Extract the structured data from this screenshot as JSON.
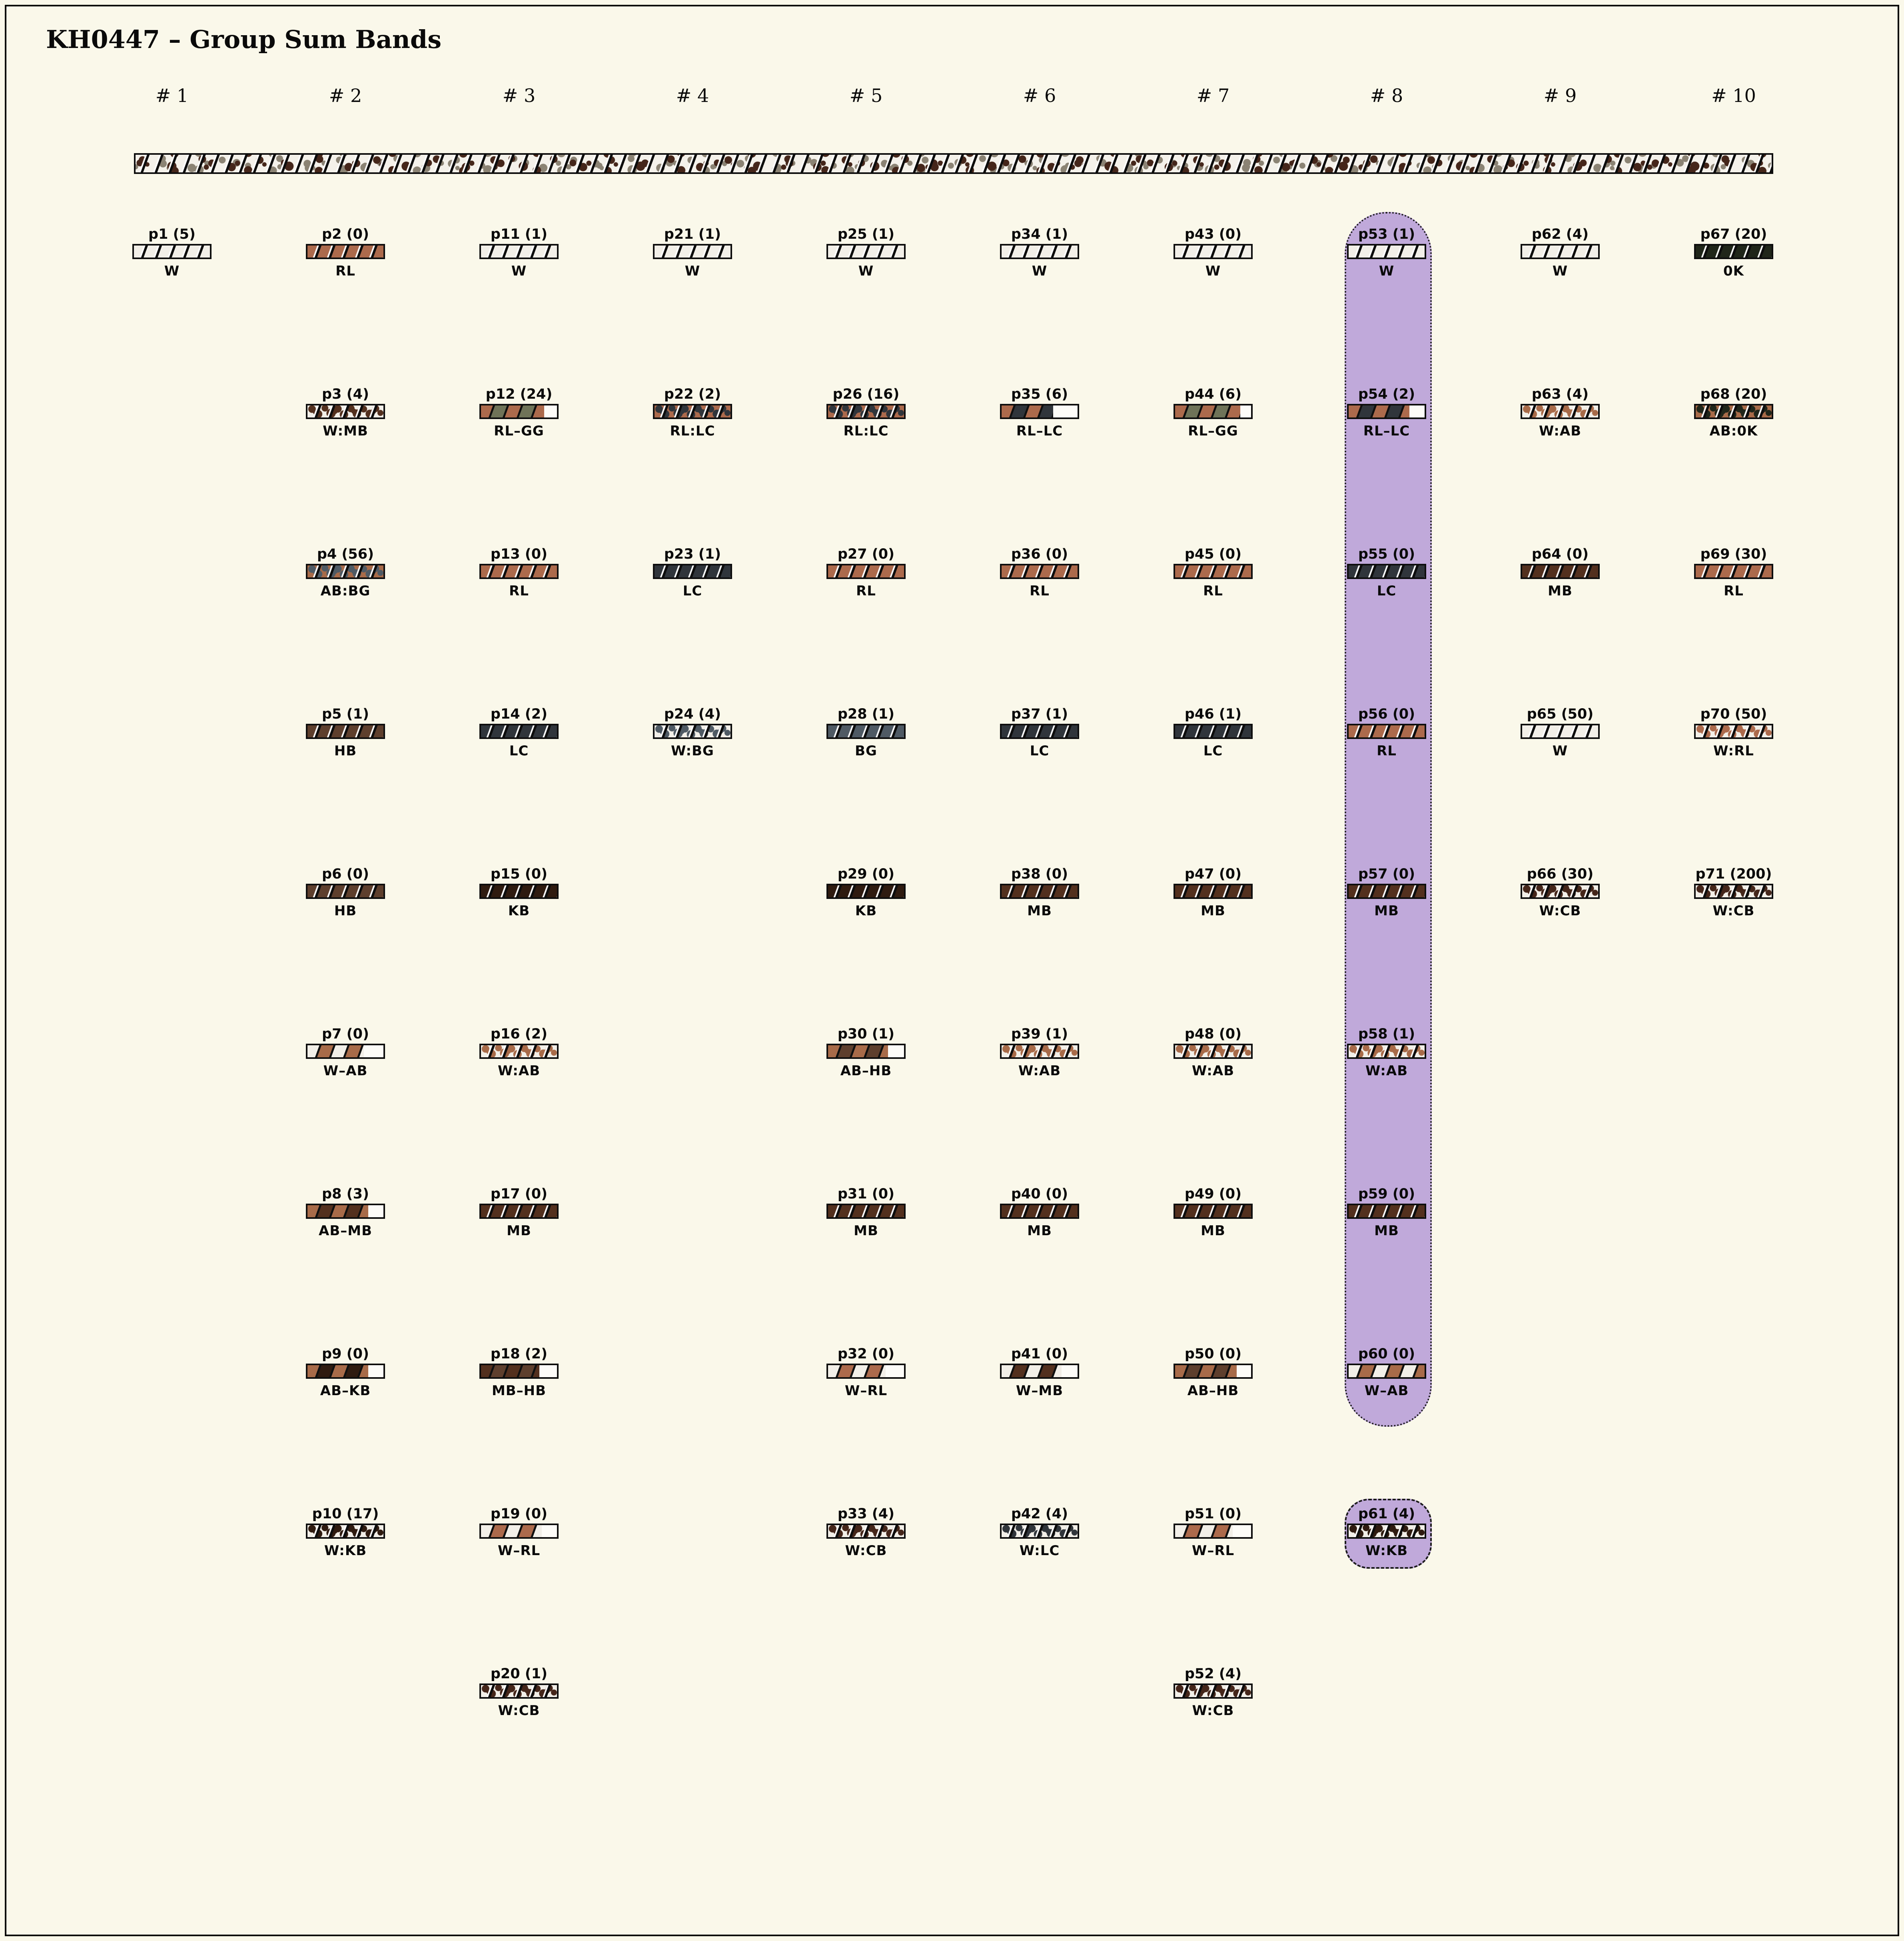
{
  "title": "KH0447 – Group Sum Bands",
  "columns": [
    {
      "label": "# 1"
    },
    {
      "label": "# 2"
    },
    {
      "label": "# 3"
    },
    {
      "label": "# 4"
    },
    {
      "label": "# 5"
    },
    {
      "label": "# 6"
    },
    {
      "label": "# 7"
    },
    {
      "label": "# 8"
    },
    {
      "label": "# 9"
    },
    {
      "label": "# 10"
    }
  ],
  "summary_band": {
    "base": "W",
    "speckle_colors": [
      "CB",
      "BG"
    ],
    "style": "speckled-hatch"
  },
  "highlight": {
    "fill": "#c0a9da",
    "column": 8,
    "from": "p53",
    "to": "p60",
    "separate_item": "p61"
  },
  "palette": {
    "W": "#f2efe8",
    "RL": "#ac6a4c",
    "LC": "#30353b",
    "BG": "#4f5a64",
    "HB": "#5e3f2d",
    "MB": "#53301e",
    "KB": "#2f1b10",
    "0K": "#20261a",
    "AB": "#a86b49",
    "GG": "#6f7358",
    "CB": "#45261a",
    "background": "#faf8ea",
    "band_border": "#0d0d0d",
    "speckle_gray": "#8b8374"
  },
  "items": [
    {
      "id": "p1",
      "label": "p1 (5)",
      "count": 5,
      "code": "W",
      "col": 1,
      "row": 1
    },
    {
      "id": "p2",
      "label": "p2 (0)",
      "count": 0,
      "code": "RL",
      "col": 2,
      "row": 1
    },
    {
      "id": "p3",
      "label": "p3 (4)",
      "count": 4,
      "code": "W:MB",
      "col": 2,
      "row": 2
    },
    {
      "id": "p4",
      "label": "p4 (56)",
      "count": 56,
      "code": "AB:BG",
      "col": 2,
      "row": 3
    },
    {
      "id": "p5",
      "label": "p5 (1)",
      "count": 1,
      "code": "HB",
      "col": 2,
      "row": 4
    },
    {
      "id": "p6",
      "label": "p6 (0)",
      "count": 0,
      "code": "HB",
      "col": 2,
      "row": 5
    },
    {
      "id": "p7",
      "label": "p7 (0)",
      "count": 0,
      "code": "W–AB",
      "col": 2,
      "row": 6,
      "fill": 0.74
    },
    {
      "id": "p8",
      "label": "p8 (3)",
      "count": 3,
      "code": "AB–MB",
      "col": 2,
      "row": 7,
      "fill": 0.8
    },
    {
      "id": "p9",
      "label": "p9 (0)",
      "count": 0,
      "code": "AB–KB",
      "col": 2,
      "row": 8,
      "fill": 0.8
    },
    {
      "id": "p10",
      "label": "p10 (17)",
      "count": 17,
      "code": "W:KB",
      "col": 2,
      "row": 9
    },
    {
      "id": "p11",
      "label": "p11 (1)",
      "count": 1,
      "code": "W",
      "col": 3,
      "row": 1
    },
    {
      "id": "p12",
      "label": "p12 (24)",
      "count": 24,
      "code": "RL–GG",
      "col": 3,
      "row": 2,
      "fill": 0.83
    },
    {
      "id": "p13",
      "label": "p13 (0)",
      "count": 0,
      "code": "RL",
      "col": 3,
      "row": 3
    },
    {
      "id": "p14",
      "label": "p14 (2)",
      "count": 2,
      "code": "LC",
      "col": 3,
      "row": 4
    },
    {
      "id": "p15",
      "label": "p15 (0)",
      "count": 0,
      "code": "KB",
      "col": 3,
      "row": 5
    },
    {
      "id": "p16",
      "label": "p16 (2)",
      "count": 2,
      "code": "W:AB",
      "col": 3,
      "row": 6
    },
    {
      "id": "p17",
      "label": "p17 (0)",
      "count": 0,
      "code": "MB",
      "col": 3,
      "row": 7
    },
    {
      "id": "p18",
      "label": "p18 (2)",
      "count": 2,
      "code": "MB–HB",
      "col": 3,
      "row": 8,
      "fill": 0.77
    },
    {
      "id": "p19",
      "label": "p19 (0)",
      "count": 0,
      "code": "W–RL",
      "col": 3,
      "row": 9,
      "fill": 0.8
    },
    {
      "id": "p20",
      "label": "p20 (1)",
      "count": 1,
      "code": "W:CB",
      "col": 3,
      "row": 10
    },
    {
      "id": "p21",
      "label": "p21 (1)",
      "count": 1,
      "code": "W",
      "col": 4,
      "row": 1
    },
    {
      "id": "p22",
      "label": "p22 (2)",
      "count": 2,
      "code": "RL:LC",
      "col": 4,
      "row": 2
    },
    {
      "id": "p23",
      "label": "p23 (1)",
      "count": 1,
      "code": "LC",
      "col": 4,
      "row": 3
    },
    {
      "id": "p24",
      "label": "p24 (4)",
      "count": 4,
      "code": "W:BG",
      "col": 4,
      "row": 4
    },
    {
      "id": "p25",
      "label": "p25 (1)",
      "count": 1,
      "code": "W",
      "col": 5,
      "row": 1
    },
    {
      "id": "p26",
      "label": "p26 (16)",
      "count": 16,
      "code": "RL:LC",
      "col": 5,
      "row": 2
    },
    {
      "id": "p27",
      "label": "p27 (0)",
      "count": 0,
      "code": "RL",
      "col": 5,
      "row": 3
    },
    {
      "id": "p28",
      "label": "p28 (1)",
      "count": 1,
      "code": "BG",
      "col": 5,
      "row": 4
    },
    {
      "id": "p29",
      "label": "p29 (0)",
      "count": 0,
      "code": "KB",
      "col": 5,
      "row": 5
    },
    {
      "id": "p30",
      "label": "p30 (1)",
      "count": 1,
      "code": "AB–HB",
      "col": 5,
      "row": 6,
      "fill": 0.79
    },
    {
      "id": "p31",
      "label": "p31 (0)",
      "count": 0,
      "code": "MB",
      "col": 5,
      "row": 7
    },
    {
      "id": "p32",
      "label": "p32 (0)",
      "count": 0,
      "code": "W–RL",
      "col": 5,
      "row": 8,
      "fill": 0.76
    },
    {
      "id": "p33",
      "label": "p33 (4)",
      "count": 4,
      "code": "W:CB",
      "col": 5,
      "row": 9
    },
    {
      "id": "p34",
      "label": "p34 (1)",
      "count": 1,
      "code": "W",
      "col": 6,
      "row": 1
    },
    {
      "id": "p35",
      "label": "p35 (6)",
      "count": 6,
      "code": "RL–LC",
      "col": 6,
      "row": 2,
      "fill": 0.68
    },
    {
      "id": "p36",
      "label": "p36 (0)",
      "count": 0,
      "code": "RL",
      "col": 6,
      "row": 3
    },
    {
      "id": "p37",
      "label": "p37 (1)",
      "count": 1,
      "code": "LC",
      "col": 6,
      "row": 4
    },
    {
      "id": "p38",
      "label": "p38 (0)",
      "count": 0,
      "code": "MB",
      "col": 6,
      "row": 5
    },
    {
      "id": "p39",
      "label": "p39 (1)",
      "count": 1,
      "code": "W:AB",
      "col": 6,
      "row": 6
    },
    {
      "id": "p40",
      "label": "p40 (0)",
      "count": 0,
      "code": "MB",
      "col": 6,
      "row": 7
    },
    {
      "id": "p41",
      "label": "p41 (0)",
      "count": 0,
      "code": "W–MB",
      "col": 6,
      "row": 8,
      "fill": 0.79
    },
    {
      "id": "p42",
      "label": "p42 (4)",
      "count": 4,
      "code": "W:LC",
      "col": 6,
      "row": 9
    },
    {
      "id": "p43",
      "label": "p43 (0)",
      "count": 0,
      "code": "W",
      "col": 7,
      "row": 1
    },
    {
      "id": "p44",
      "label": "p44 (6)",
      "count": 6,
      "code": "RL–GG",
      "col": 7,
      "row": 2,
      "fill": 0.86
    },
    {
      "id": "p45",
      "label": "p45 (0)",
      "count": 0,
      "code": "RL",
      "col": 7,
      "row": 3
    },
    {
      "id": "p46",
      "label": "p46 (1)",
      "count": 1,
      "code": "LC",
      "col": 7,
      "row": 4
    },
    {
      "id": "p47",
      "label": "p47 (0)",
      "count": 0,
      "code": "MB",
      "col": 7,
      "row": 5
    },
    {
      "id": "p48",
      "label": "p48 (0)",
      "count": 0,
      "code": "W:AB",
      "col": 7,
      "row": 6
    },
    {
      "id": "p49",
      "label": "p49 (0)",
      "count": 0,
      "code": "MB",
      "col": 7,
      "row": 7
    },
    {
      "id": "p50",
      "label": "p50 (0)",
      "count": 0,
      "code": "AB–HB",
      "col": 7,
      "row": 8,
      "fill": 0.81
    },
    {
      "id": "p51",
      "label": "p51 (0)",
      "count": 0,
      "code": "W–RL",
      "col": 7,
      "row": 9,
      "fill": 0.76
    },
    {
      "id": "p52",
      "label": "p52 (4)",
      "count": 4,
      "code": "W:CB",
      "col": 7,
      "row": 10
    },
    {
      "id": "p53",
      "label": "p53 (1)",
      "count": 1,
      "code": "W",
      "col": 8,
      "row": 1
    },
    {
      "id": "p54",
      "label": "p54 (2)",
      "count": 2,
      "code": "RL–LC",
      "col": 8,
      "row": 2,
      "fill": 0.8
    },
    {
      "id": "p55",
      "label": "p55 (0)",
      "count": 0,
      "code": "LC",
      "col": 8,
      "row": 3
    },
    {
      "id": "p56",
      "label": "p56 (0)",
      "count": 0,
      "code": "RL",
      "col": 8,
      "row": 4
    },
    {
      "id": "p57",
      "label": "p57 (0)",
      "count": 0,
      "code": "MB",
      "col": 8,
      "row": 5
    },
    {
      "id": "p58",
      "label": "p58 (1)",
      "count": 1,
      "code": "W:AB",
      "col": 8,
      "row": 6
    },
    {
      "id": "p59",
      "label": "p59 (0)",
      "count": 0,
      "code": "MB",
      "col": 8,
      "row": 7
    },
    {
      "id": "p60",
      "label": "p60 (0)",
      "count": 0,
      "code": "W–AB",
      "col": 8,
      "row": 8,
      "fill": 1
    },
    {
      "id": "p61",
      "label": "p61 (4)",
      "count": 4,
      "code": "W:KB",
      "col": 8,
      "row": 9
    },
    {
      "id": "p62",
      "label": "p62 (4)",
      "count": 4,
      "code": "W",
      "col": 9,
      "row": 1
    },
    {
      "id": "p63",
      "label": "p63 (4)",
      "count": 4,
      "code": "W:AB",
      "col": 9,
      "row": 2
    },
    {
      "id": "p64",
      "label": "p64 (0)",
      "count": 0,
      "code": "MB",
      "col": 9,
      "row": 3
    },
    {
      "id": "p65",
      "label": "p65 (50)",
      "count": 50,
      "code": "W",
      "col": 9,
      "row": 4
    },
    {
      "id": "p66",
      "label": "p66 (30)",
      "count": 30,
      "code": "W:CB",
      "col": 9,
      "row": 5
    },
    {
      "id": "p67",
      "label": "p67 (20)",
      "count": 20,
      "code": "0K",
      "col": 10,
      "row": 1
    },
    {
      "id": "p68",
      "label": "p68 (20)",
      "count": 20,
      "code": "AB:0K",
      "col": 10,
      "row": 2
    },
    {
      "id": "p69",
      "label": "p69 (30)",
      "count": 30,
      "code": "RL",
      "col": 10,
      "row": 3
    },
    {
      "id": "p70",
      "label": "p70 (50)",
      "count": 50,
      "code": "W:RL",
      "col": 10,
      "row": 4
    },
    {
      "id": "p71",
      "label": "p71 (200)",
      "count": 200,
      "code": "W:CB",
      "col": 10,
      "row": 5
    }
  ]
}
